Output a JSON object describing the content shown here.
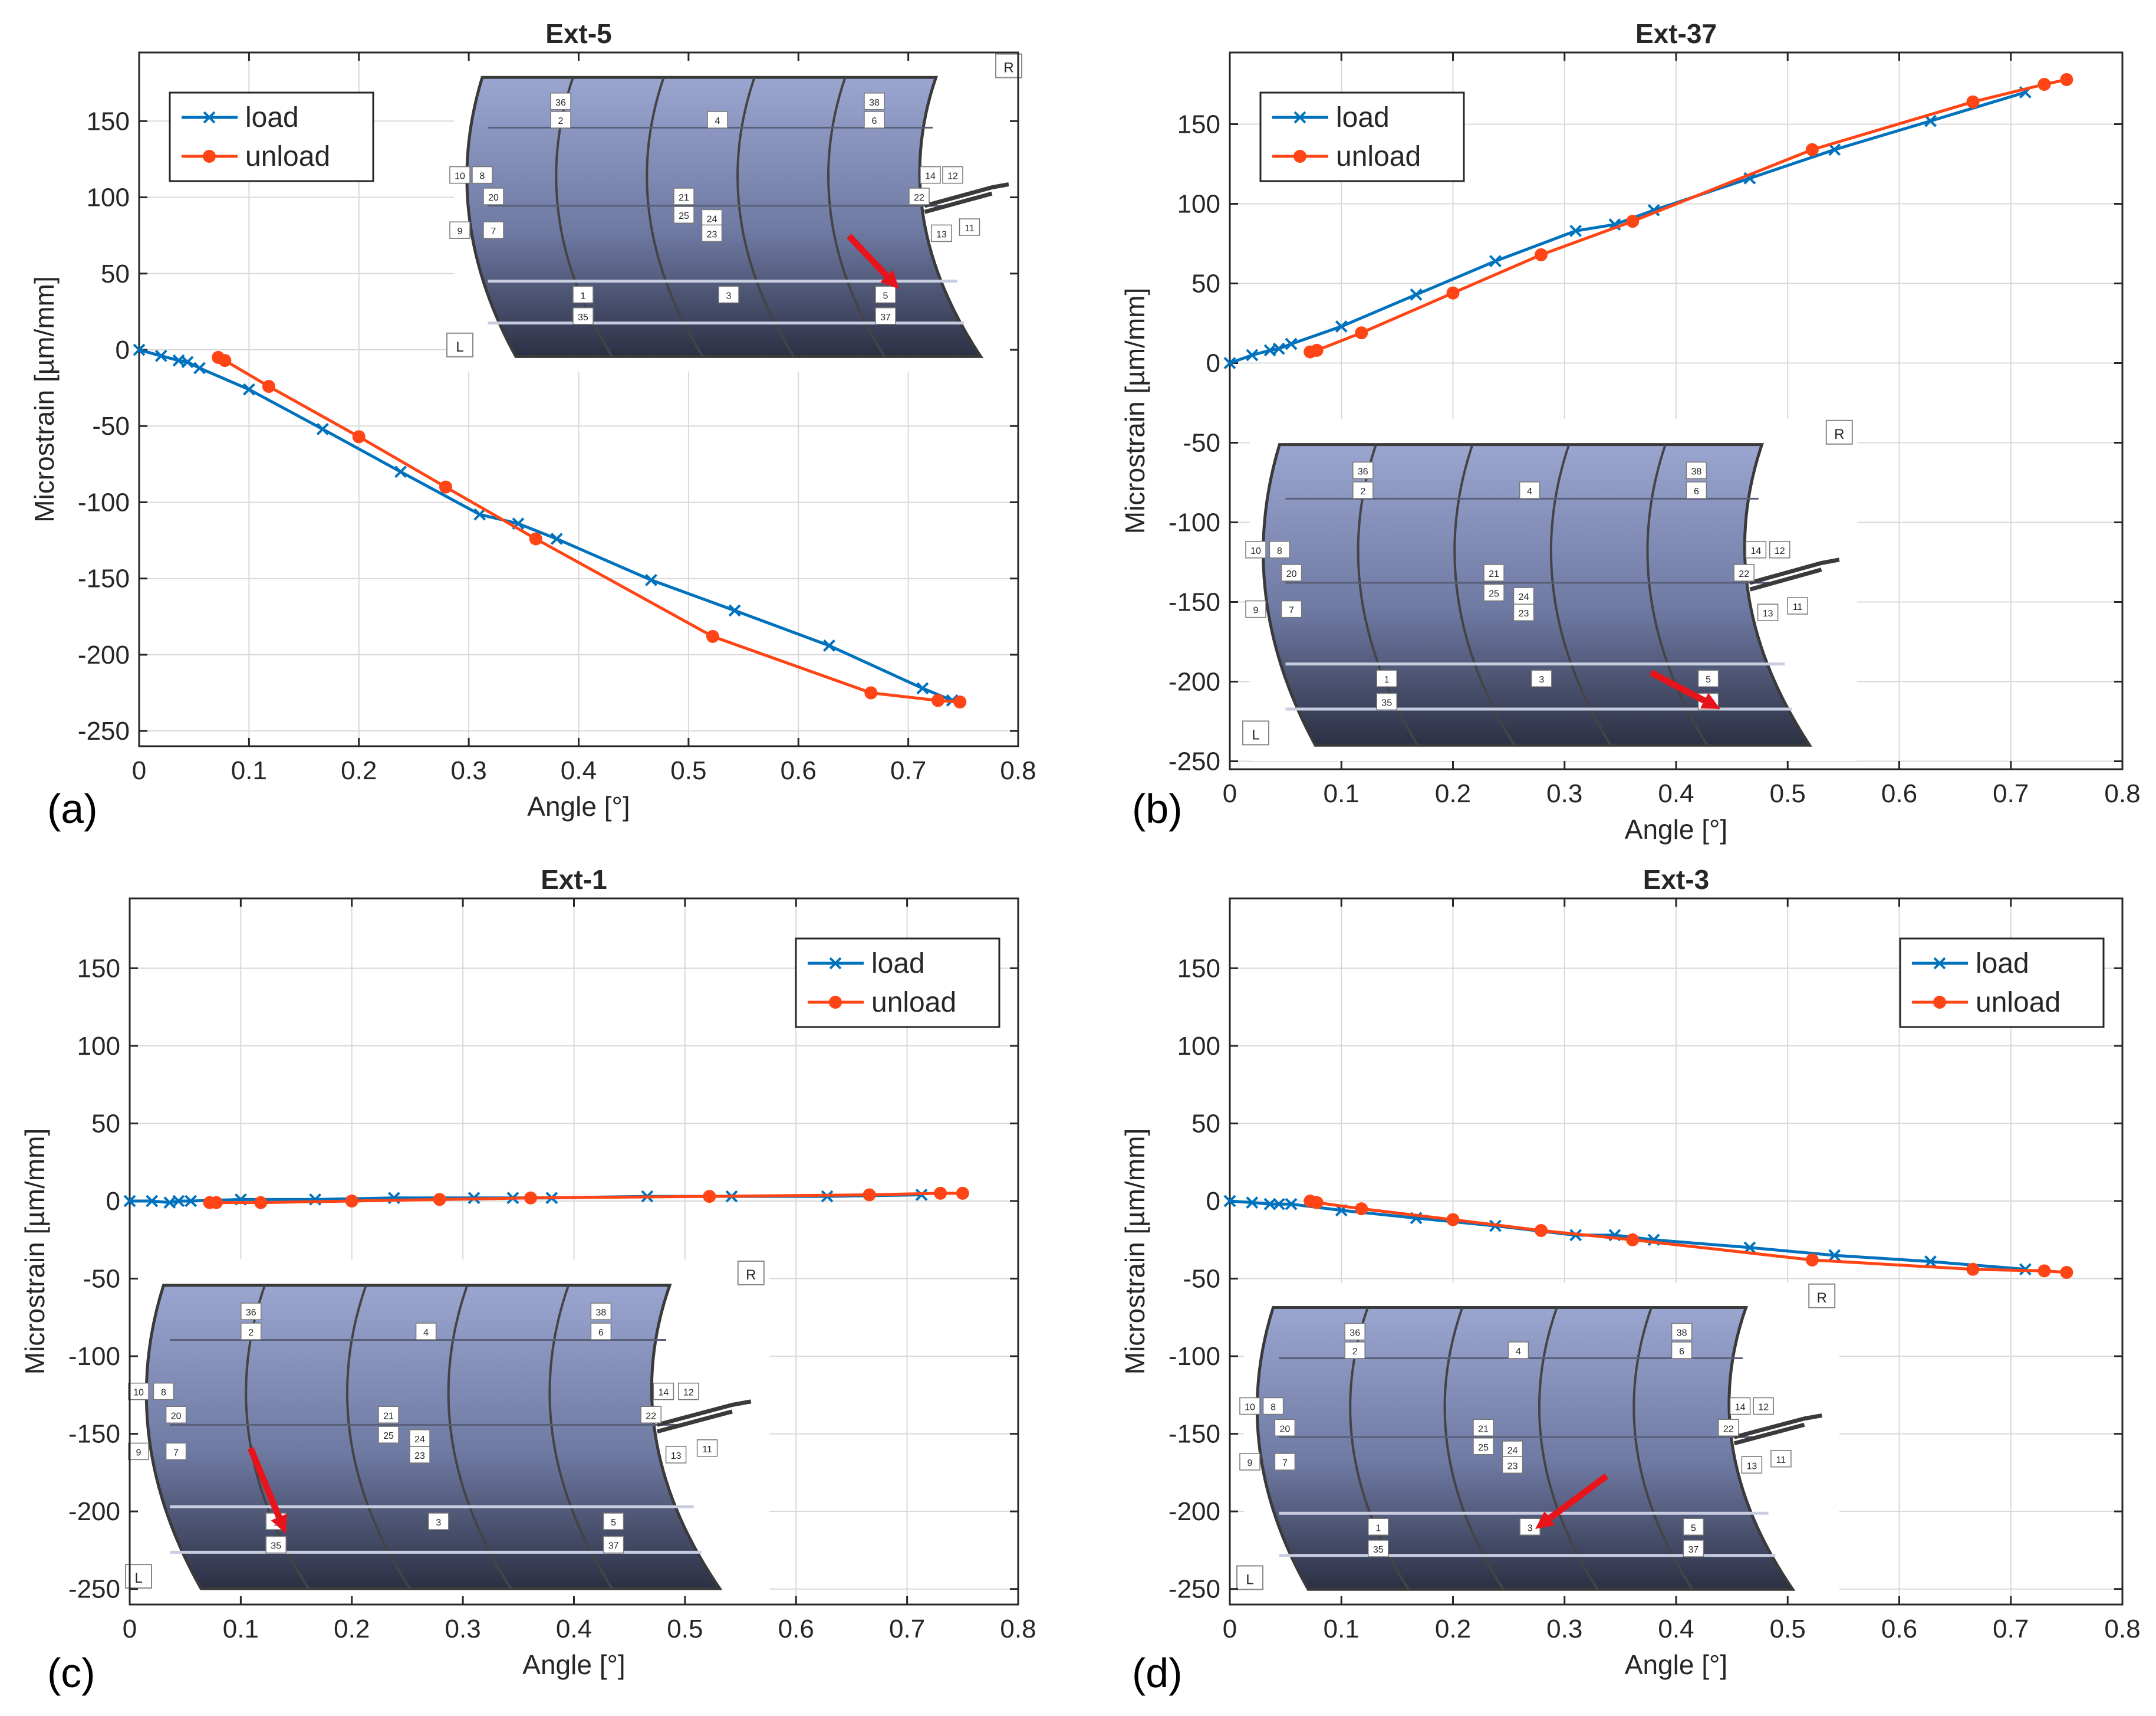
{
  "figure": {
    "colors": {
      "load": "#0072BD",
      "unload": "#FF4415",
      "arrow": "#E8141B",
      "grid": "#d9d9d9",
      "axis": "#262626"
    },
    "inset_labels": {
      "r": "R",
      "l": "L",
      "numbers": [
        "36",
        "2",
        "4",
        "38",
        "6",
        "10",
        "8",
        "20",
        "9",
        "7",
        "21",
        "25",
        "24",
        "23",
        "14",
        "12",
        "22",
        "13",
        "11",
        "1",
        "35",
        "3",
        "5",
        "37"
      ]
    }
  },
  "chart_data": [
    {
      "type": "line",
      "panel_label": "(a)",
      "title": "Ext-5",
      "xlabel": "Angle [°]",
      "ylabel": "Microstrain [µm/mm]",
      "xlim": [
        0,
        0.8
      ],
      "ylim": [
        -260,
        195
      ],
      "xticks": [
        0,
        0.1,
        0.2,
        0.3,
        0.4,
        0.5,
        0.6,
        0.7,
        0.8
      ],
      "xtick_labels": [
        "0",
        "0.1",
        "0.2",
        "0.3",
        "0.4",
        "0.5",
        "0.6",
        "0.7",
        "0.8"
      ],
      "yticks": [
        -250,
        -200,
        -150,
        -100,
        -50,
        0,
        50,
        100,
        150
      ],
      "ytick_labels": [
        "-250",
        "-200",
        "-150",
        "-100",
        "-50",
        "0",
        "50",
        "100",
        "150"
      ],
      "legend": {
        "position": "top-left",
        "entries": [
          "load",
          "unload"
        ]
      },
      "inset": "top-right",
      "series": [
        {
          "name": "load",
          "marker": "x",
          "x": [
            0,
            0.02,
            0.036,
            0.044,
            0.055,
            0.1,
            0.167,
            0.238,
            0.31,
            0.345,
            0.38,
            0.466,
            0.542,
            0.628,
            0.713,
            0.74
          ],
          "y": [
            0,
            -4,
            -7,
            -8,
            -12,
            -26,
            -52,
            -80,
            -108,
            -114,
            -124,
            -151,
            -171,
            -194,
            -222,
            -230
          ]
        },
        {
          "name": "unload",
          "marker": "o",
          "x": [
            0.072,
            0.078,
            0.118,
            0.2,
            0.279,
            0.361,
            0.522,
            0.666,
            0.727,
            0.747
          ],
          "y": [
            -5,
            -7,
            -24,
            -57,
            -90,
            -124,
            -188,
            -225,
            -230,
            -231
          ]
        }
      ]
    },
    {
      "type": "line",
      "panel_label": "(b)",
      "title": "Ext-37",
      "xlabel": "Angle [°]",
      "ylabel": "Microstrain [µm/mm]",
      "xlim": [
        0,
        0.8
      ],
      "ylim": [
        -255,
        195
      ],
      "xticks": [
        0,
        0.1,
        0.2,
        0.3,
        0.4,
        0.5,
        0.6,
        0.7,
        0.8
      ],
      "xtick_labels": [
        "0",
        "0.1",
        "0.2",
        "0.3",
        "0.4",
        "0.5",
        "0.6",
        "0.7",
        "0.8"
      ],
      "yticks": [
        -250,
        -200,
        -150,
        -100,
        -50,
        0,
        50,
        100,
        150
      ],
      "ytick_labels": [
        "-250",
        "-200",
        "-150",
        "-100",
        "-50",
        "0",
        "50",
        "100",
        "150"
      ],
      "legend": {
        "position": "top-left",
        "entries": [
          "load",
          "unload"
        ]
      },
      "inset": "bottom-left",
      "series": [
        {
          "name": "load",
          "marker": "x",
          "x": [
            0,
            0.02,
            0.036,
            0.044,
            0.055,
            0.1,
            0.167,
            0.238,
            0.31,
            0.345,
            0.38,
            0.466,
            0.542,
            0.628,
            0.713
          ],
          "y": [
            0,
            5,
            8,
            9,
            12,
            23,
            43,
            64,
            83,
            87,
            96,
            116,
            134,
            152,
            170
          ]
        },
        {
          "name": "unload",
          "marker": "o",
          "x": [
            0.072,
            0.078,
            0.118,
            0.2,
            0.279,
            0.361,
            0.522,
            0.666,
            0.73,
            0.75
          ],
          "y": [
            7,
            8,
            19,
            44,
            68,
            89,
            134,
            164,
            175,
            178
          ]
        }
      ]
    },
    {
      "type": "line",
      "panel_label": "(c)",
      "title": "Ext-1",
      "xlabel": "Angle [°]",
      "ylabel": "Microstrain [µm/mm]",
      "xlim": [
        0,
        0.8
      ],
      "ylim": [
        -260,
        195
      ],
      "xticks": [
        0,
        0.1,
        0.2,
        0.3,
        0.4,
        0.5,
        0.6,
        0.7,
        0.8
      ],
      "xtick_labels": [
        "0",
        "0.1",
        "0.2",
        "0.3",
        "0.4",
        "0.5",
        "0.6",
        "0.7",
        "0.8"
      ],
      "yticks": [
        -250,
        -200,
        -150,
        -100,
        -50,
        0,
        50,
        100,
        150
      ],
      "ytick_labels": [
        "-250",
        "-200",
        "-150",
        "-100",
        "-50",
        "0",
        "50",
        "100",
        "150"
      ],
      "legend": {
        "position": "top-right",
        "entries": [
          "load",
          "unload"
        ]
      },
      "inset": "bottom-left",
      "series": [
        {
          "name": "load",
          "marker": "x",
          "x": [
            0,
            0.02,
            0.036,
            0.044,
            0.055,
            0.1,
            0.167,
            0.238,
            0.31,
            0.345,
            0.38,
            0.466,
            0.542,
            0.628,
            0.713
          ],
          "y": [
            0,
            0,
            -1,
            0,
            0,
            1,
            1,
            2,
            2,
            2,
            2,
            3,
            3,
            3,
            4
          ]
        },
        {
          "name": "unload",
          "marker": "o",
          "x": [
            0.072,
            0.078,
            0.118,
            0.2,
            0.279,
            0.361,
            0.522,
            0.666,
            0.73,
            0.75
          ],
          "y": [
            -1,
            -1,
            -1,
            0,
            1,
            2,
            3,
            4,
            5,
            5
          ]
        }
      ]
    },
    {
      "type": "line",
      "panel_label": "(d)",
      "title": "Ext-3",
      "xlabel": "Angle [°]",
      "ylabel": "Microstrain [µm/mm]",
      "xlim": [
        0,
        0.8
      ],
      "ylim": [
        -260,
        195
      ],
      "xticks": [
        0,
        0.1,
        0.2,
        0.3,
        0.4,
        0.5,
        0.6,
        0.7,
        0.8
      ],
      "xtick_labels": [
        "0",
        "0.1",
        "0.2",
        "0.3",
        "0.4",
        "0.5",
        "0.6",
        "0.7",
        "0.8"
      ],
      "yticks": [
        -250,
        -200,
        -150,
        -100,
        -50,
        0,
        50,
        100,
        150
      ],
      "ytick_labels": [
        "-250",
        "-200",
        "-150",
        "-100",
        "-50",
        "0",
        "50",
        "100",
        "150"
      ],
      "legend": {
        "position": "top-right",
        "entries": [
          "load",
          "unload"
        ]
      },
      "inset": "bottom-left",
      "series": [
        {
          "name": "load",
          "marker": "x",
          "x": [
            0,
            0.02,
            0.036,
            0.044,
            0.055,
            0.1,
            0.167,
            0.238,
            0.31,
            0.345,
            0.38,
            0.466,
            0.542,
            0.628,
            0.713
          ],
          "y": [
            0,
            -1,
            -2,
            -2,
            -2,
            -6,
            -11,
            -16,
            -22,
            -22,
            -25,
            -30,
            -35,
            -39,
            -44
          ]
        },
        {
          "name": "unload",
          "marker": "o",
          "x": [
            0.072,
            0.078,
            0.118,
            0.2,
            0.279,
            0.361,
            0.522,
            0.666,
            0.73,
            0.75
          ],
          "y": [
            0,
            -1,
            -5,
            -12,
            -19,
            -25,
            -38,
            -44,
            -45,
            -46
          ]
        }
      ]
    }
  ]
}
